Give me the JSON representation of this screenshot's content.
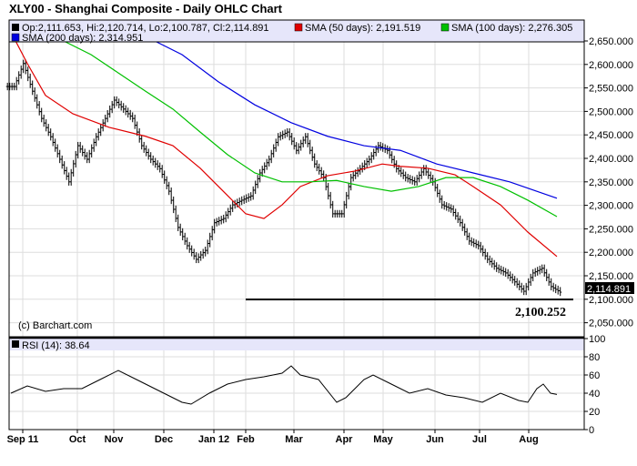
{
  "chart_data": {
    "type": "line",
    "title": "XLY00 - Shanghai Composite - Daily OHLC Chart",
    "legend": {
      "ohlc": "Op:2,111.653, Hi:2,120.714, Lo:2,100.787, Cl:2,114.891",
      "sma50": "SMA (50 days): 2,191.519",
      "sma100": "SMA (100 days): 2,276.305",
      "sma200": "SMA (200 days): 2,314.951"
    },
    "colors": {
      "ohlc": "#000000",
      "sma50": "#e00000",
      "sma100": "#00c000",
      "sma200": "#0000e0",
      "legend_bg": "#e6e6fa"
    },
    "price_axis": {
      "ylim": [
        2050,
        2650
      ],
      "ticks": [
        "2,650.000",
        "2,600.000",
        "2,550.000",
        "2,500.000",
        "2,450.000",
        "2,400.000",
        "2,350.000",
        "2,300.000",
        "2,250.000",
        "2,200.000",
        "2,150.000",
        "2,100.000",
        "2,050.000"
      ],
      "tick_values": [
        2650,
        2600,
        2550,
        2500,
        2450,
        2400,
        2350,
        2300,
        2250,
        2200,
        2150,
        2100,
        2050
      ]
    },
    "last_price": "2,114.891",
    "support": {
      "value": 2100.252,
      "label": "2,100.252"
    },
    "copyright": "(c) Barchart.com",
    "x_labels": [
      "Sep 11",
      "Oct",
      "Nov",
      "Dec",
      "Jan 12",
      "Feb",
      "Mar",
      "Apr",
      "May",
      "Jun",
      "Jul",
      "Aug"
    ],
    "x_label_index": [
      1.3,
      7.3,
      11.3,
      16.8,
      22.3,
      25.8,
      31.1,
      36.6,
      40.9,
      46.6,
      51.5,
      56.9
    ],
    "closes": [
      2553,
      2602,
      2543,
      2485,
      2446,
      2398,
      2350,
      2427,
      2398,
      2446,
      2485,
      2524,
      2505,
      2485,
      2427,
      2398,
      2378,
      2330,
      2253,
      2214,
      2185,
      2204,
      2263,
      2272,
      2301,
      2311,
      2320,
      2369,
      2398,
      2446,
      2456,
      2417,
      2446,
      2388,
      2359,
      2282,
      2282,
      2359,
      2378,
      2398,
      2427,
      2417,
      2378,
      2359,
      2350,
      2378,
      2350,
      2301,
      2292,
      2263,
      2224,
      2214,
      2185,
      2166,
      2156,
      2137,
      2117,
      2156,
      2166,
      2127,
      2115
    ],
    "sma50": [
      [
        0,
        2669
      ],
      [
        1.8,
        2602
      ],
      [
        3.8,
        2534
      ],
      [
        6.8,
        2495
      ],
      [
        10.8,
        2466
      ],
      [
        14.8,
        2447
      ],
      [
        17.8,
        2427
      ],
      [
        20.8,
        2379
      ],
      [
        23.8,
        2321
      ],
      [
        25.8,
        2282
      ],
      [
        27.8,
        2272
      ],
      [
        29.8,
        2301
      ],
      [
        31.8,
        2340
      ],
      [
        34.8,
        2363
      ],
      [
        37.8,
        2373
      ],
      [
        40.8,
        2388
      ],
      [
        42.8,
        2383
      ],
      [
        45.8,
        2379
      ],
      [
        48.8,
        2365
      ],
      [
        50.8,
        2340
      ],
      [
        53.8,
        2301
      ],
      [
        56.8,
        2243
      ],
      [
        60,
        2191
      ]
    ],
    "sma100": [
      [
        4.8,
        2670
      ],
      [
        5.8,
        2650
      ],
      [
        8.8,
        2621
      ],
      [
        11.8,
        2582
      ],
      [
        14.8,
        2543
      ],
      [
        17.8,
        2505
      ],
      [
        20.8,
        2456
      ],
      [
        23.8,
        2408
      ],
      [
        26.8,
        2369
      ],
      [
        29.8,
        2350
      ],
      [
        32.8,
        2350
      ],
      [
        35.8,
        2353
      ],
      [
        38.8,
        2340
      ],
      [
        41.8,
        2330
      ],
      [
        44.8,
        2340
      ],
      [
        47.8,
        2359
      ],
      [
        50.8,
        2359
      ],
      [
        53.8,
        2340
      ],
      [
        56.8,
        2311
      ],
      [
        60,
        2276
      ]
    ],
    "sma200": [
      [
        14.8,
        2665
      ],
      [
        15.8,
        2650
      ],
      [
        18.8,
        2621
      ],
      [
        22.8,
        2563
      ],
      [
        26.8,
        2514
      ],
      [
        30.8,
        2476
      ],
      [
        34.8,
        2447
      ],
      [
        38.8,
        2427
      ],
      [
        42.8,
        2417
      ],
      [
        46.8,
        2388
      ],
      [
        50.8,
        2369
      ],
      [
        54.8,
        2350
      ],
      [
        60,
        2315
      ]
    ],
    "rsi": {
      "label": "RSI (14): 38.64",
      "ylim": [
        0,
        100
      ],
      "ticks": [
        "100",
        "80",
        "60",
        "40",
        "20",
        "0"
      ],
      "tick_values": [
        100,
        80,
        60,
        40,
        20,
        0
      ],
      "points": [
        [
          0,
          40
        ],
        [
          1.8,
          48
        ],
        [
          3.8,
          42
        ],
        [
          5.8,
          45
        ],
        [
          7.8,
          45
        ],
        [
          9.8,
          55
        ],
        [
          11.8,
          65
        ],
        [
          13.8,
          55
        ],
        [
          15.8,
          45
        ],
        [
          17.8,
          35
        ],
        [
          18.8,
          30
        ],
        [
          19.8,
          28
        ],
        [
          21.8,
          40
        ],
        [
          23.8,
          50
        ],
        [
          25.8,
          55
        ],
        [
          27.8,
          58
        ],
        [
          29.8,
          62
        ],
        [
          30.8,
          70
        ],
        [
          31.8,
          60
        ],
        [
          33.8,
          55
        ],
        [
          35.8,
          30
        ],
        [
          36.8,
          35
        ],
        [
          38.8,
          55
        ],
        [
          39.8,
          60
        ],
        [
          41.8,
          50
        ],
        [
          43.8,
          40
        ],
        [
          45.8,
          45
        ],
        [
          47.8,
          38
        ],
        [
          49.8,
          35
        ],
        [
          51.8,
          30
        ],
        [
          53.8,
          40
        ],
        [
          55.8,
          32
        ],
        [
          56.8,
          30
        ],
        [
          57.8,
          45
        ],
        [
          58.5,
          50
        ],
        [
          59.3,
          40
        ],
        [
          60,
          38.6
        ]
      ]
    }
  }
}
